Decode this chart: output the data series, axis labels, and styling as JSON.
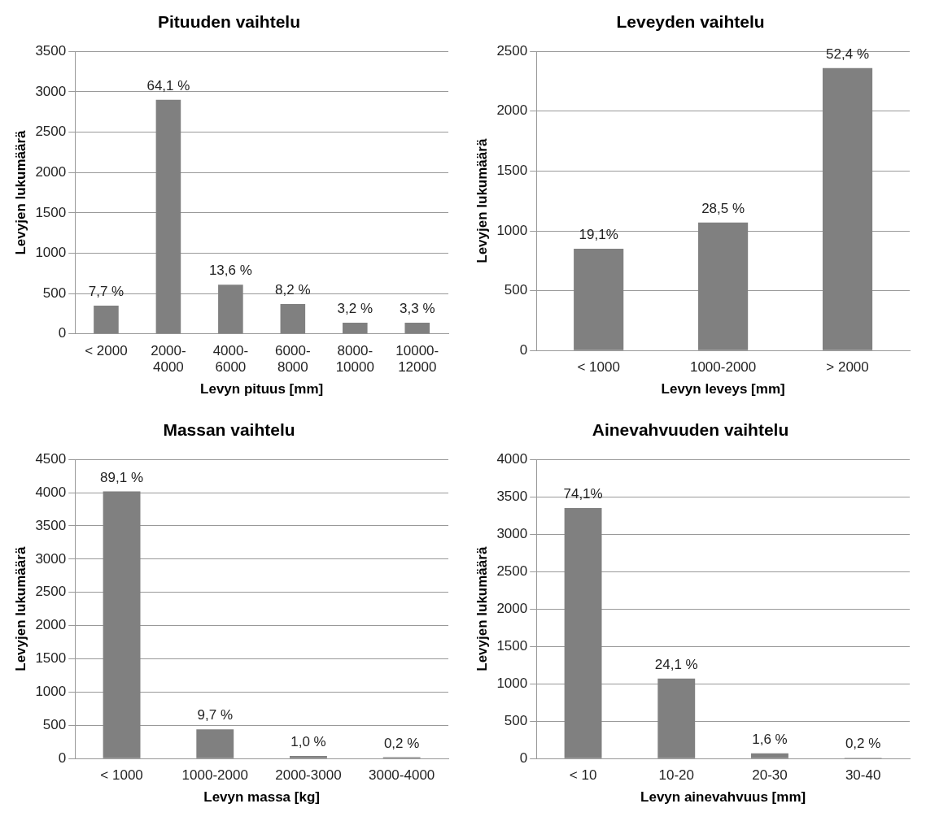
{
  "chart_data": [
    {
      "type": "bar",
      "title": "Pituuden vaihtelu",
      "xlabel": "Levyn pituus [mm]",
      "ylabel": "Levyjen lukumäärä",
      "categories": [
        "< 2000",
        "2000-4000",
        "4000-6000",
        "6000-8000",
        "8000-10000",
        "10000-12000"
      ],
      "values": [
        350,
        2900,
        610,
        370,
        140,
        140
      ],
      "annotations": [
        {
          "text": "7,7 %",
          "x": "< 2000",
          "y": 350
        },
        {
          "text": "64,1 %",
          "x": "2000-4000",
          "y": 2900
        },
        {
          "text": "13,6 %",
          "x": "4000-6000",
          "y": 610
        },
        {
          "text": "8,2 %",
          "x": "6000-8000",
          "y": 370
        },
        {
          "text": "3,2 %",
          "x": "8000-10000",
          "y": 140
        },
        {
          "text": "3,3 %",
          "x": "10000-12000",
          "y": 140
        }
      ],
      "color": "#808080",
      "ylim": [
        0,
        3500
      ],
      "yticks": [
        0,
        500,
        1000,
        1500,
        2000,
        2500,
        3000,
        3500
      ],
      "grid": "y"
    },
    {
      "type": "bar",
      "title": "Leveyden vaihtelu",
      "xlabel": "Levyn leveys [mm]",
      "ylabel": "Levyjen lukumäärä",
      "categories": [
        "< 1000",
        "1000-2000",
        "> 2000"
      ],
      "values": [
        850,
        1070,
        2360
      ],
      "annotations": [
        {
          "text": "19,1%",
          "x": "< 1000",
          "y": 850
        },
        {
          "text": "28,5 %",
          "x": "1000-2000",
          "y": 1070
        },
        {
          "text": "52,4 %",
          "x": "> 2000",
          "y": 2360
        }
      ],
      "color": "#808080",
      "ylim": [
        0,
        2500
      ],
      "yticks": [
        0,
        500,
        1000,
        1500,
        2000,
        2500
      ],
      "grid": "y"
    },
    {
      "type": "bar",
      "title": "Massan vaihtelu",
      "xlabel": "Levyn massa [kg]",
      "ylabel": "Levyjen lukumäärä",
      "categories": [
        "< 1000",
        "1000-2000",
        "2000-3000",
        "3000-4000"
      ],
      "values": [
        4020,
        440,
        40,
        20
      ],
      "annotations": [
        {
          "text": "89,1 %",
          "x": "< 1000",
          "y": 4020
        },
        {
          "text": "9,7 %",
          "x": "1000-2000",
          "y": 440
        },
        {
          "text": "1,0 %",
          "x": "2000-3000",
          "y": 40
        },
        {
          "text": "0,2 %",
          "x": "3000-4000",
          "y": 20
        }
      ],
      "color": "#808080",
      "ylim": [
        0,
        4500
      ],
      "yticks": [
        0,
        500,
        1000,
        1500,
        2000,
        2500,
        3000,
        3500,
        4000,
        4500
      ],
      "grid": "y"
    },
    {
      "type": "bar",
      "title": "Ainevahvuuden vaihtelu",
      "xlabel": "Levyn ainevahvuus [mm]",
      "ylabel": "Levyjen lukumäärä",
      "categories": [
        "< 10",
        "10-20",
        "20-30",
        "30-40"
      ],
      "values": [
        3350,
        1070,
        70,
        10
      ],
      "annotations": [
        {
          "text": "74,1%",
          "x": "< 10",
          "y": 3350
        },
        {
          "text": "24,1 %",
          "x": "10-20",
          "y": 1070
        },
        {
          "text": "1,6 %",
          "x": "20-30",
          "y": 70
        },
        {
          "text": "0,2 %",
          "x": "30-40",
          "y": 10
        }
      ],
      "color": "#808080",
      "ylim": [
        0,
        4000
      ],
      "yticks": [
        0,
        500,
        1000,
        1500,
        2000,
        2500,
        3000,
        3500,
        4000
      ],
      "grid": "y"
    }
  ]
}
